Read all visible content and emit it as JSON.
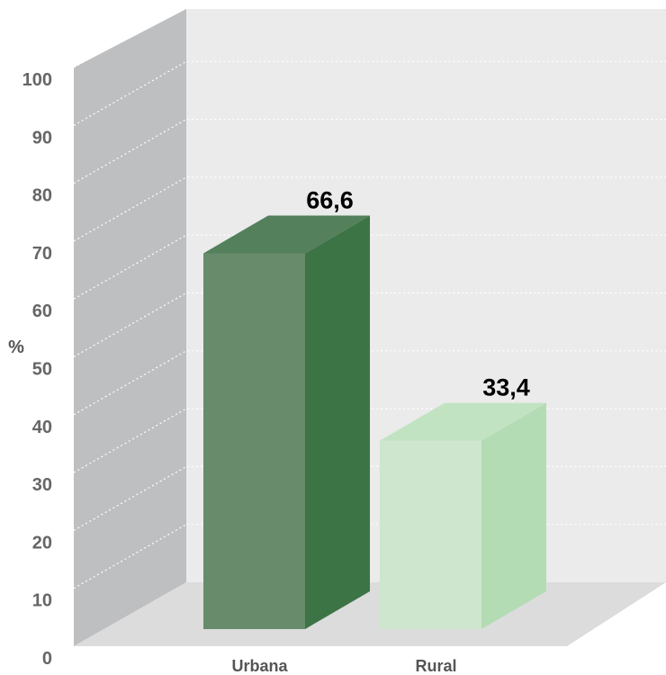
{
  "chart_data": {
    "type": "bar",
    "categories": [
      "Urbana",
      "Rural"
    ],
    "values": [
      66.6,
      33.4
    ],
    "value_labels": [
      "66,6",
      "33,4"
    ],
    "ylabel": "%",
    "ylim": [
      0,
      100
    ],
    "yticks": [
      "0",
      "10",
      "20",
      "30",
      "40",
      "50",
      "60",
      "70",
      "80",
      "90",
      "100"
    ],
    "grid": true,
    "three_d": true,
    "colors": {
      "bars": [
        {
          "front": "#678b6b",
          "side": "#3c7446",
          "top": "#55805c"
        },
        {
          "front": "#cde6cd",
          "side": "#b4dcb4",
          "top": "#c2e3c2"
        }
      ],
      "back_wall": "#ebebeb",
      "side_wall": "#bebfc1",
      "floor": "#dcdcdd"
    }
  }
}
